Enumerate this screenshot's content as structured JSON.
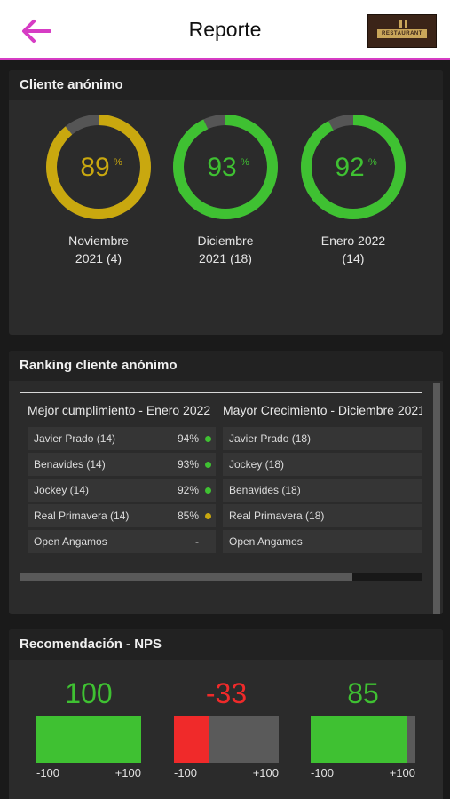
{
  "header": {
    "title": "Reporte",
    "logo_text": "RESTAURANT",
    "colors": {
      "accent": "#d63cc4",
      "background": "#ffffff"
    }
  },
  "anon": {
    "title": "Cliente anónimo",
    "donuts": [
      {
        "value": "89",
        "unit": "%",
        "percent": 89,
        "line1": "Noviembre",
        "line2": "2021 (4)",
        "color": "#c9a80f"
      },
      {
        "value": "93",
        "unit": "%",
        "percent": 93,
        "line1": "Diciembre",
        "line2": "2021 (18)",
        "color": "#3fc132"
      },
      {
        "value": "92",
        "unit": "%",
        "percent": 92,
        "line1": "Enero 2022",
        "line2": "(14)",
        "color": "#3fc132"
      }
    ]
  },
  "ranking": {
    "title": "Ranking cliente anónimo",
    "best": {
      "title": "Mejor cumplimiento - Enero 2022",
      "rows": [
        {
          "name": "Javier Prado (14)",
          "pct": "94%",
          "dot": "#3fc132"
        },
        {
          "name": "Benavides (14)",
          "pct": "93%",
          "dot": "#3fc132"
        },
        {
          "name": "Jockey (14)",
          "pct": "92%",
          "dot": "#3fc132"
        },
        {
          "name": "Real Primavera (14)",
          "pct": "85%",
          "dot": "#c9a80f"
        },
        {
          "name": "Open Angamos",
          "pct": "-",
          "dot": ""
        }
      ]
    },
    "growth": {
      "title": "Mayor Crecimiento - Diciembre 2021",
      "rows": [
        {
          "name": "Javier Prado (18)"
        },
        {
          "name": "Jockey (18)"
        },
        {
          "name": "Benavides (18)"
        },
        {
          "name": "Real Primavera (18)"
        },
        {
          "name": "Open Angamos"
        }
      ]
    }
  },
  "nps": {
    "title": "Recomendación - NPS",
    "items": [
      {
        "value": "100",
        "score": 100,
        "color": "#3fc132",
        "min": "-100",
        "max": "+100"
      },
      {
        "value": "-33",
        "score": -33,
        "color": "#f02a2a",
        "min": "-100",
        "max": "+100"
      },
      {
        "value": "85",
        "score": 85,
        "color": "#3fc132",
        "min": "-100",
        "max": "+100"
      }
    ]
  }
}
